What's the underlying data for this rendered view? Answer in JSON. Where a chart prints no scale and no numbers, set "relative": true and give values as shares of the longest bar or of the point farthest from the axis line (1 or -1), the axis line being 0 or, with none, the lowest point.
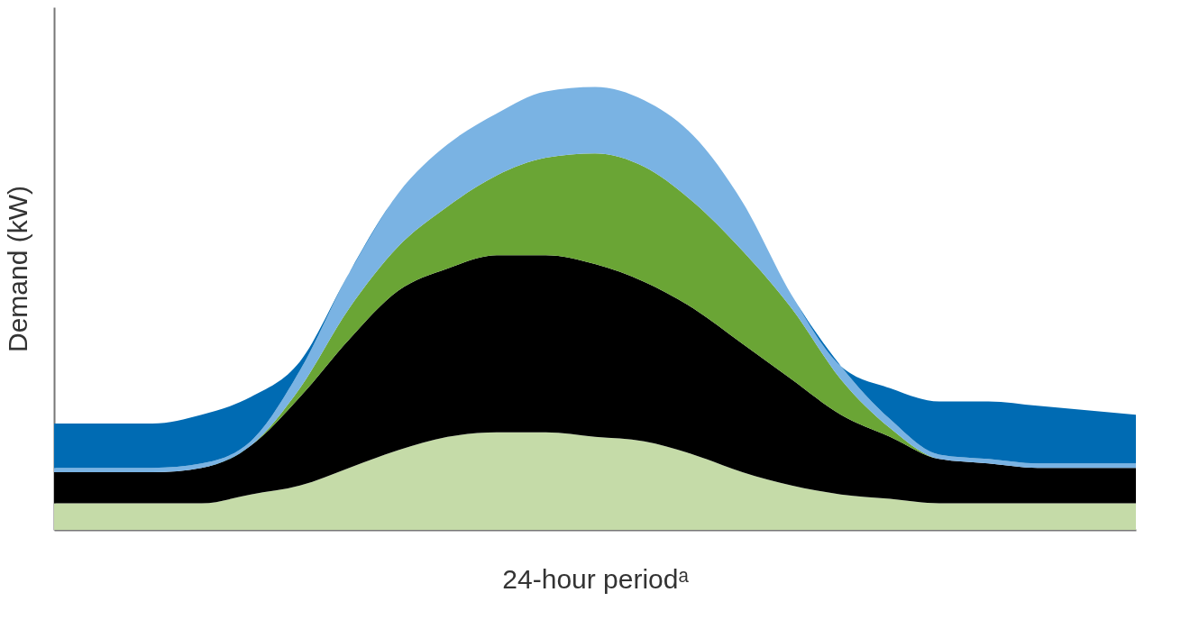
{
  "chart_data": {
    "type": "area",
    "relative": true,
    "stacked": true,
    "grid": false,
    "legend": false,
    "tick_labels": false,
    "xlabel": "24-hour periodᵃ",
    "ylabel": "Demand (kW)",
    "categories": [
      null,
      null,
      null,
      null,
      null,
      null,
      null,
      null,
      null,
      null,
      null,
      null,
      null,
      null,
      null,
      null,
      null,
      null,
      null,
      null,
      null,
      null,
      null
    ],
    "series": [
      {
        "color": "#c5dba8",
        "values": [
          0.06,
          0.06,
          0.06,
          0.06,
          0.08,
          0.1,
          0.14,
          0.18,
          0.21,
          0.22,
          0.22,
          0.21,
          0.2,
          0.17,
          0.13,
          0.1,
          0.08,
          0.07,
          0.06,
          0.06,
          0.06,
          0.06,
          0.06
        ]
      },
      {
        "color": "#000000",
        "values": [
          0.07,
          0.07,
          0.07,
          0.08,
          0.11,
          0.2,
          0.29,
          0.36,
          0.38,
          0.4,
          0.4,
          0.39,
          0.36,
          0.33,
          0.29,
          0.24,
          0.18,
          0.14,
          0.1,
          0.09,
          0.08,
          0.08,
          0.08
        ]
      },
      {
        "color": "#6aa535",
        "values": [
          0,
          0,
          0,
          0,
          0,
          0.02,
          0.07,
          0.1,
          0.14,
          0.18,
          0.22,
          0.25,
          0.26,
          0.24,
          0.21,
          0.16,
          0.08,
          0.02,
          0,
          0,
          0,
          0,
          0
        ]
      },
      {
        "color": "#7ab3e3",
        "values": [
          0.01,
          0.01,
          0.01,
          0.01,
          0.01,
          0.04,
          0.08,
          0.12,
          0.14,
          0.14,
          0.15,
          0.15,
          0.15,
          0.15,
          0.11,
          0.03,
          0.03,
          0.02,
          0.01,
          0.01,
          0.01,
          0.01,
          0.01
        ]
      },
      {
        "color": "#006bb3",
        "values": [
          0.1,
          0.1,
          0.1,
          0.11,
          0.1,
          0.02,
          0,
          0,
          0,
          0,
          0,
          0,
          0,
          0,
          0,
          0,
          0,
          0.07,
          0.12,
          0.13,
          0.13,
          0.12,
          0.11
        ]
      }
    ]
  }
}
